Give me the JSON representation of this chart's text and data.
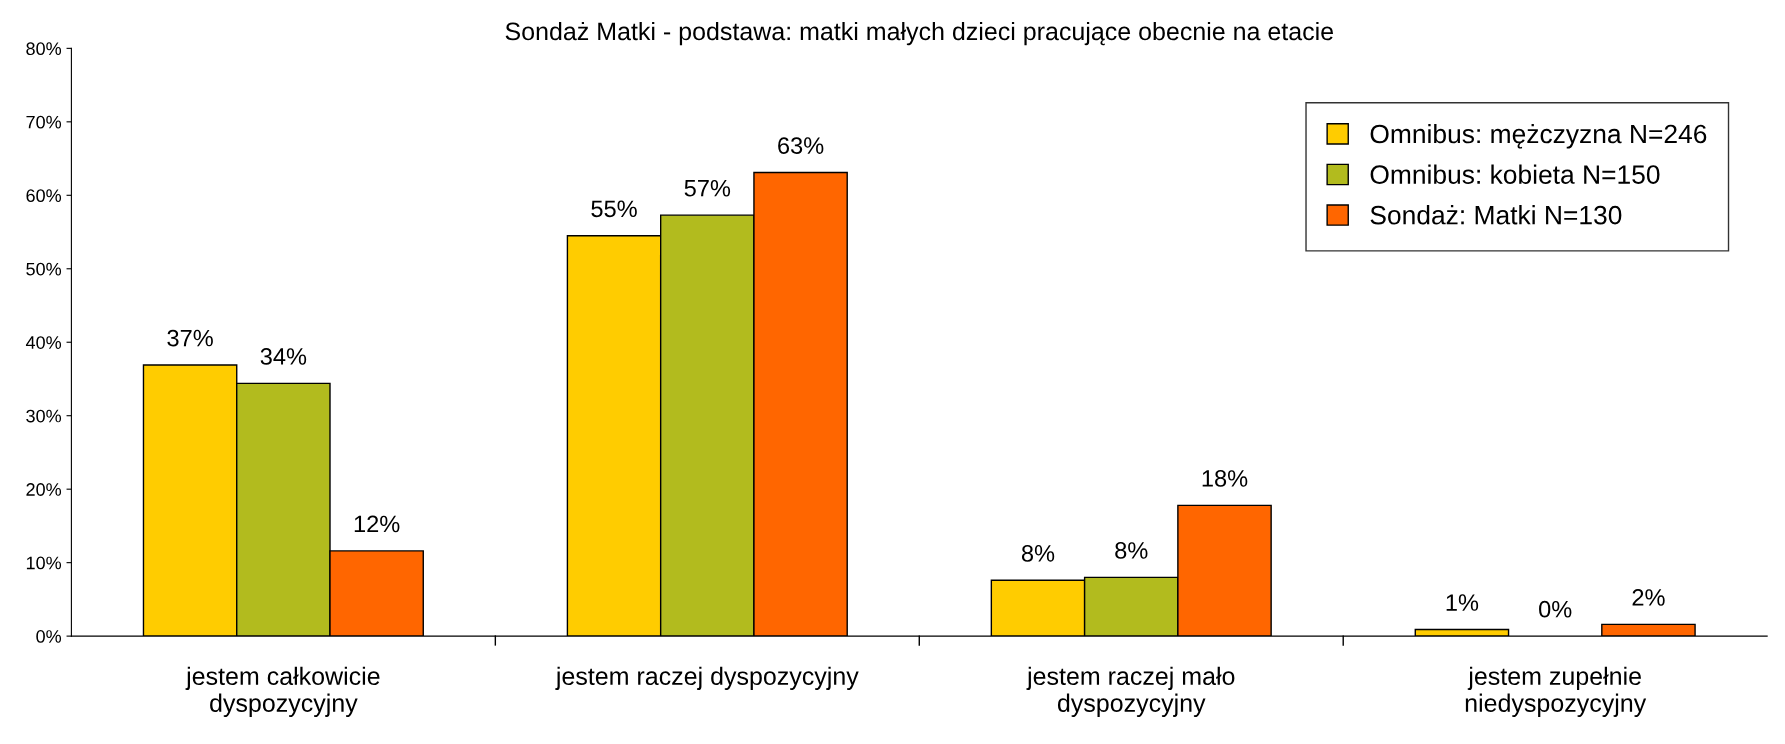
{
  "chart_data": {
    "type": "bar",
    "title": "Sondaż Matki - podstawa: matki małych dzieci pracujące obecnie na etacie",
    "categories": [
      "jestem całkowicie\ndyspozycyjny",
      "jestem raczej dyspozycyjny",
      "jestem raczej mało\ndyspozycyjny",
      "jestem zupełnie\nniedyspozycyjny"
    ],
    "series": [
      {
        "name": "Omnibus: mężczyzna N=246",
        "color": "#ffcc00",
        "values": [
          36.9,
          54.5,
          7.6,
          0.9
        ],
        "value_labels": [
          "37%",
          "55%",
          "8%",
          "1%"
        ]
      },
      {
        "name": "Omnibus: kobieta N=150",
        "color": "#b2bb1e",
        "values": [
          34.4,
          57.3,
          8.0,
          0
        ],
        "value_labels": [
          "34%",
          "57%",
          "8%",
          "0%"
        ]
      },
      {
        "name": "Sondaż: Matki N=130",
        "color": "#ff6600",
        "values": [
          11.6,
          63.1,
          17.8,
          1.6
        ],
        "value_labels": [
          "12%",
          "63%",
          "18%",
          "2%"
        ]
      }
    ],
    "ylim": [
      0,
      80
    ],
    "yticks": [
      {
        "value": 0,
        "label": "0%"
      },
      {
        "value": 10,
        "label": "10%"
      },
      {
        "value": 20,
        "label": "20%"
      },
      {
        "value": 30,
        "label": "30%"
      },
      {
        "value": 40,
        "label": "40%"
      },
      {
        "value": 50,
        "label": "50%"
      },
      {
        "value": 60,
        "label": "60%"
      },
      {
        "value": 70,
        "label": "70%"
      },
      {
        "value": 80,
        "label": "80%"
      }
    ],
    "grid": false,
    "legend": "top right"
  }
}
